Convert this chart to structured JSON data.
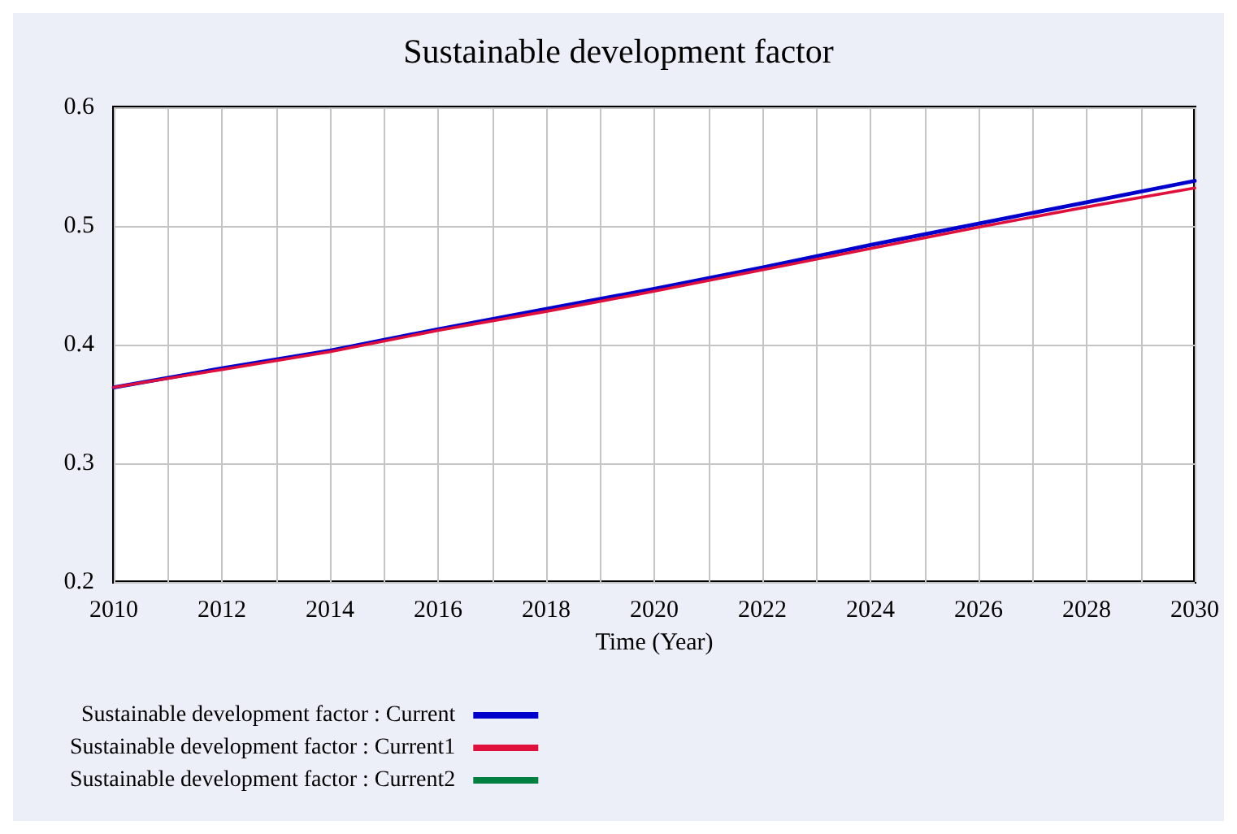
{
  "chart_data": {
    "type": "line",
    "title": "Sustainable development factor",
    "xlabel": "Time (Year)",
    "x": [
      2010,
      2012,
      2014,
      2016,
      2018,
      2020,
      2022,
      2024,
      2026,
      2028,
      2030
    ],
    "series": [
      {
        "name": "Sustainable development factor : Current",
        "color": "#0000cc",
        "values": [
          0.364,
          0.38,
          0.395,
          0.413,
          0.43,
          0.447,
          0.465,
          0.484,
          0.502,
          0.52,
          0.538
        ]
      },
      {
        "name": "Sustainable development factor : Current1",
        "color": "#e0103c",
        "values": [
          0.364,
          0.379,
          0.394,
          0.412,
          0.428,
          0.445,
          0.463,
          0.481,
          0.499,
          0.516,
          0.532
        ]
      },
      {
        "name": "Sustainable development factor : Current2",
        "color": "#008040",
        "values": [
          null,
          null,
          null,
          null,
          null,
          null,
          null,
          null,
          null,
          null,
          null
        ]
      }
    ],
    "xlim": [
      2010,
      2030
    ],
    "xticks": [
      2010,
      {
        "value": 2011,
        "label": null
      },
      2012,
      {
        "value": 2013,
        "label": null
      },
      2014,
      {
        "value": 2015,
        "label": null
      },
      2016,
      {
        "value": 2017,
        "label": null
      },
      2018,
      {
        "value": 2019,
        "label": null
      },
      2020,
      {
        "value": 2021,
        "label": null
      },
      2022,
      {
        "value": 2023,
        "label": null
      },
      2024,
      {
        "value": 2025,
        "label": null
      },
      2026,
      {
        "value": 2027,
        "label": null
      },
      2028,
      {
        "value": 2029,
        "label": null
      },
      2030
    ],
    "ylim": [
      0.2,
      0.6
    ],
    "yticks": [
      0.2,
      0.3,
      0.4,
      0.5,
      0.6
    ],
    "grid": true,
    "legend": "bottom",
    "marker": "none",
    "line_style": "solid"
  }
}
